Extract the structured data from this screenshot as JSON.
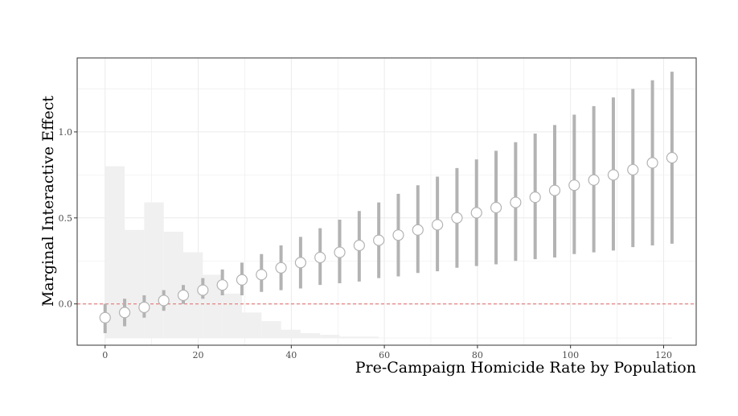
{
  "chart_data": {
    "type": "scatter",
    "title": "",
    "xlabel": "Pre-Campaign Homicide Rate by Population",
    "ylabel": "Marginal Interactive Effect",
    "xlim": [
      -6,
      127
    ],
    "ylim": [
      -0.24,
      1.43
    ],
    "x_ticks": [
      0,
      20,
      40,
      60,
      80,
      100,
      120
    ],
    "x_tick_labels": [
      "0",
      "20",
      "40",
      "60",
      "80",
      "100",
      "120"
    ],
    "y_ticks": [
      0.0,
      0.5,
      1.0
    ],
    "y_tick_labels": [
      "0.0",
      "0.5",
      "1.0"
    ],
    "grid": true,
    "reference_line": {
      "y": 0,
      "style": "dashed",
      "color": "#e06666"
    },
    "histogram": {
      "bin_width": 4.2,
      "bin_starts": [
        0,
        4.2,
        8.4,
        12.6,
        16.8,
        21,
        25.2,
        29.4,
        33.6,
        37.8,
        42,
        46.2,
        50.4,
        54.6,
        58.8,
        63,
        67.2,
        71.4,
        75.6,
        79.8,
        84,
        88.2,
        92.4,
        96.6,
        100.8,
        105,
        109.2,
        113.4,
        117.6
      ],
      "heights": [
        0.8,
        0.43,
        0.59,
        0.42,
        0.3,
        0.17,
        0.06,
        -0.05,
        -0.1,
        -0.15,
        -0.17,
        -0.18,
        -0.19,
        -0.19,
        -0.2,
        -0.2,
        -0.2,
        -0.2,
        -0.2,
        -0.2,
        -0.2,
        -0.2,
        -0.2,
        -0.2,
        -0.2,
        -0.2,
        -0.2,
        -0.2,
        -0.2
      ],
      "baseline": -0.2
    },
    "series": [
      {
        "x": [
          0,
          4.2,
          8.4,
          12.6,
          16.8,
          21,
          25.2,
          29.4,
          33.6,
          37.8,
          42,
          46.2,
          50.4,
          54.6,
          58.8,
          63,
          67.2,
          71.4,
          75.6,
          79.8,
          84,
          88.2,
          92.4,
          96.6,
          100.8,
          105,
          109.2,
          113.4,
          117.6,
          121.8
        ],
        "y": [
          -0.08,
          -0.05,
          -0.02,
          0.02,
          0.05,
          0.08,
          0.11,
          0.14,
          0.17,
          0.21,
          0.24,
          0.27,
          0.3,
          0.34,
          0.37,
          0.4,
          0.43,
          0.46,
          0.5,
          0.53,
          0.56,
          0.59,
          0.62,
          0.66,
          0.69,
          0.72,
          0.75,
          0.78,
          0.82,
          0.85
        ],
        "lower": [
          -0.17,
          -0.13,
          -0.08,
          -0.04,
          0.0,
          0.03,
          0.05,
          0.05,
          0.07,
          0.08,
          0.09,
          0.11,
          0.12,
          0.13,
          0.15,
          0.16,
          0.18,
          0.19,
          0.21,
          0.22,
          0.23,
          0.25,
          0.26,
          0.27,
          0.29,
          0.3,
          0.31,
          0.33,
          0.34,
          0.35
        ],
        "upper": [
          0.0,
          0.03,
          0.05,
          0.08,
          0.11,
          0.15,
          0.2,
          0.24,
          0.29,
          0.34,
          0.39,
          0.44,
          0.49,
          0.54,
          0.59,
          0.64,
          0.69,
          0.74,
          0.79,
          0.84,
          0.89,
          0.94,
          0.99,
          1.04,
          1.1,
          1.15,
          1.2,
          1.25,
          1.3,
          1.35
        ]
      }
    ],
    "colors": {
      "panel_border": "#333333",
      "grid": "#ebebeb",
      "histogram": "#f0f0f0",
      "error_bar": "#b3b3b3",
      "point_fill": "#ffffff",
      "point_stroke": "#b3b3b3",
      "reference_line": "#e06666"
    }
  }
}
